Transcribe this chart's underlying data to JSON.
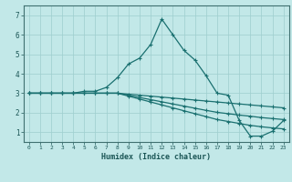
{
  "xlabel": "Humidex (Indice chaleur)",
  "bg_color": "#c2e8e8",
  "grid_color": "#9ecece",
  "line_color": "#1a7070",
  "xlim": [
    -0.5,
    23.5
  ],
  "ylim": [
    0.5,
    7.5
  ],
  "xticks": [
    0,
    1,
    2,
    3,
    4,
    5,
    6,
    7,
    8,
    9,
    10,
    11,
    12,
    13,
    14,
    15,
    16,
    17,
    18,
    19,
    20,
    21,
    22,
    23
  ],
  "yticks": [
    1,
    2,
    3,
    4,
    5,
    6,
    7
  ],
  "line1_x": [
    0,
    1,
    2,
    3,
    4,
    5,
    6,
    7,
    8,
    9,
    10,
    11,
    12,
    13,
    14,
    15,
    16,
    17,
    18,
    19,
    20,
    21,
    22,
    23
  ],
  "line1_y": [
    3.0,
    3.0,
    3.0,
    3.0,
    3.0,
    3.1,
    3.1,
    3.3,
    3.8,
    4.5,
    4.8,
    5.5,
    6.8,
    6.0,
    5.2,
    4.7,
    3.9,
    3.0,
    2.9,
    1.6,
    0.8,
    0.8,
    1.05,
    1.6
  ],
  "line2_x": [
    0,
    1,
    2,
    3,
    4,
    5,
    6,
    7,
    8,
    9,
    10,
    11,
    12,
    13,
    14,
    15,
    16,
    17,
    18,
    19,
    20,
    21,
    22,
    23
  ],
  "line2_y": [
    3.0,
    3.0,
    3.0,
    3.0,
    3.0,
    3.0,
    3.0,
    3.0,
    3.0,
    2.9,
    2.78,
    2.67,
    2.56,
    2.45,
    2.34,
    2.23,
    2.12,
    2.02,
    1.95,
    1.88,
    1.82,
    1.75,
    1.7,
    1.65
  ],
  "line3_x": [
    0,
    1,
    2,
    3,
    4,
    5,
    6,
    7,
    8,
    9,
    10,
    11,
    12,
    13,
    14,
    15,
    16,
    17,
    18,
    19,
    20,
    21,
    22,
    23
  ],
  "line3_y": [
    3.0,
    3.0,
    3.0,
    3.0,
    3.0,
    3.0,
    3.0,
    3.0,
    3.0,
    2.85,
    2.7,
    2.55,
    2.4,
    2.25,
    2.1,
    1.95,
    1.8,
    1.65,
    1.55,
    1.45,
    1.35,
    1.28,
    1.22,
    1.17
  ],
  "line4_x": [
    0,
    1,
    2,
    3,
    4,
    5,
    6,
    7,
    8,
    9,
    10,
    11,
    12,
    13,
    14,
    15,
    16,
    17,
    18,
    19,
    20,
    21,
    22,
    23
  ],
  "line4_y": [
    3.0,
    3.0,
    3.0,
    3.0,
    3.0,
    3.0,
    3.0,
    3.0,
    3.0,
    2.95,
    2.9,
    2.85,
    2.8,
    2.75,
    2.7,
    2.65,
    2.6,
    2.55,
    2.5,
    2.45,
    2.4,
    2.35,
    2.3,
    2.25
  ]
}
